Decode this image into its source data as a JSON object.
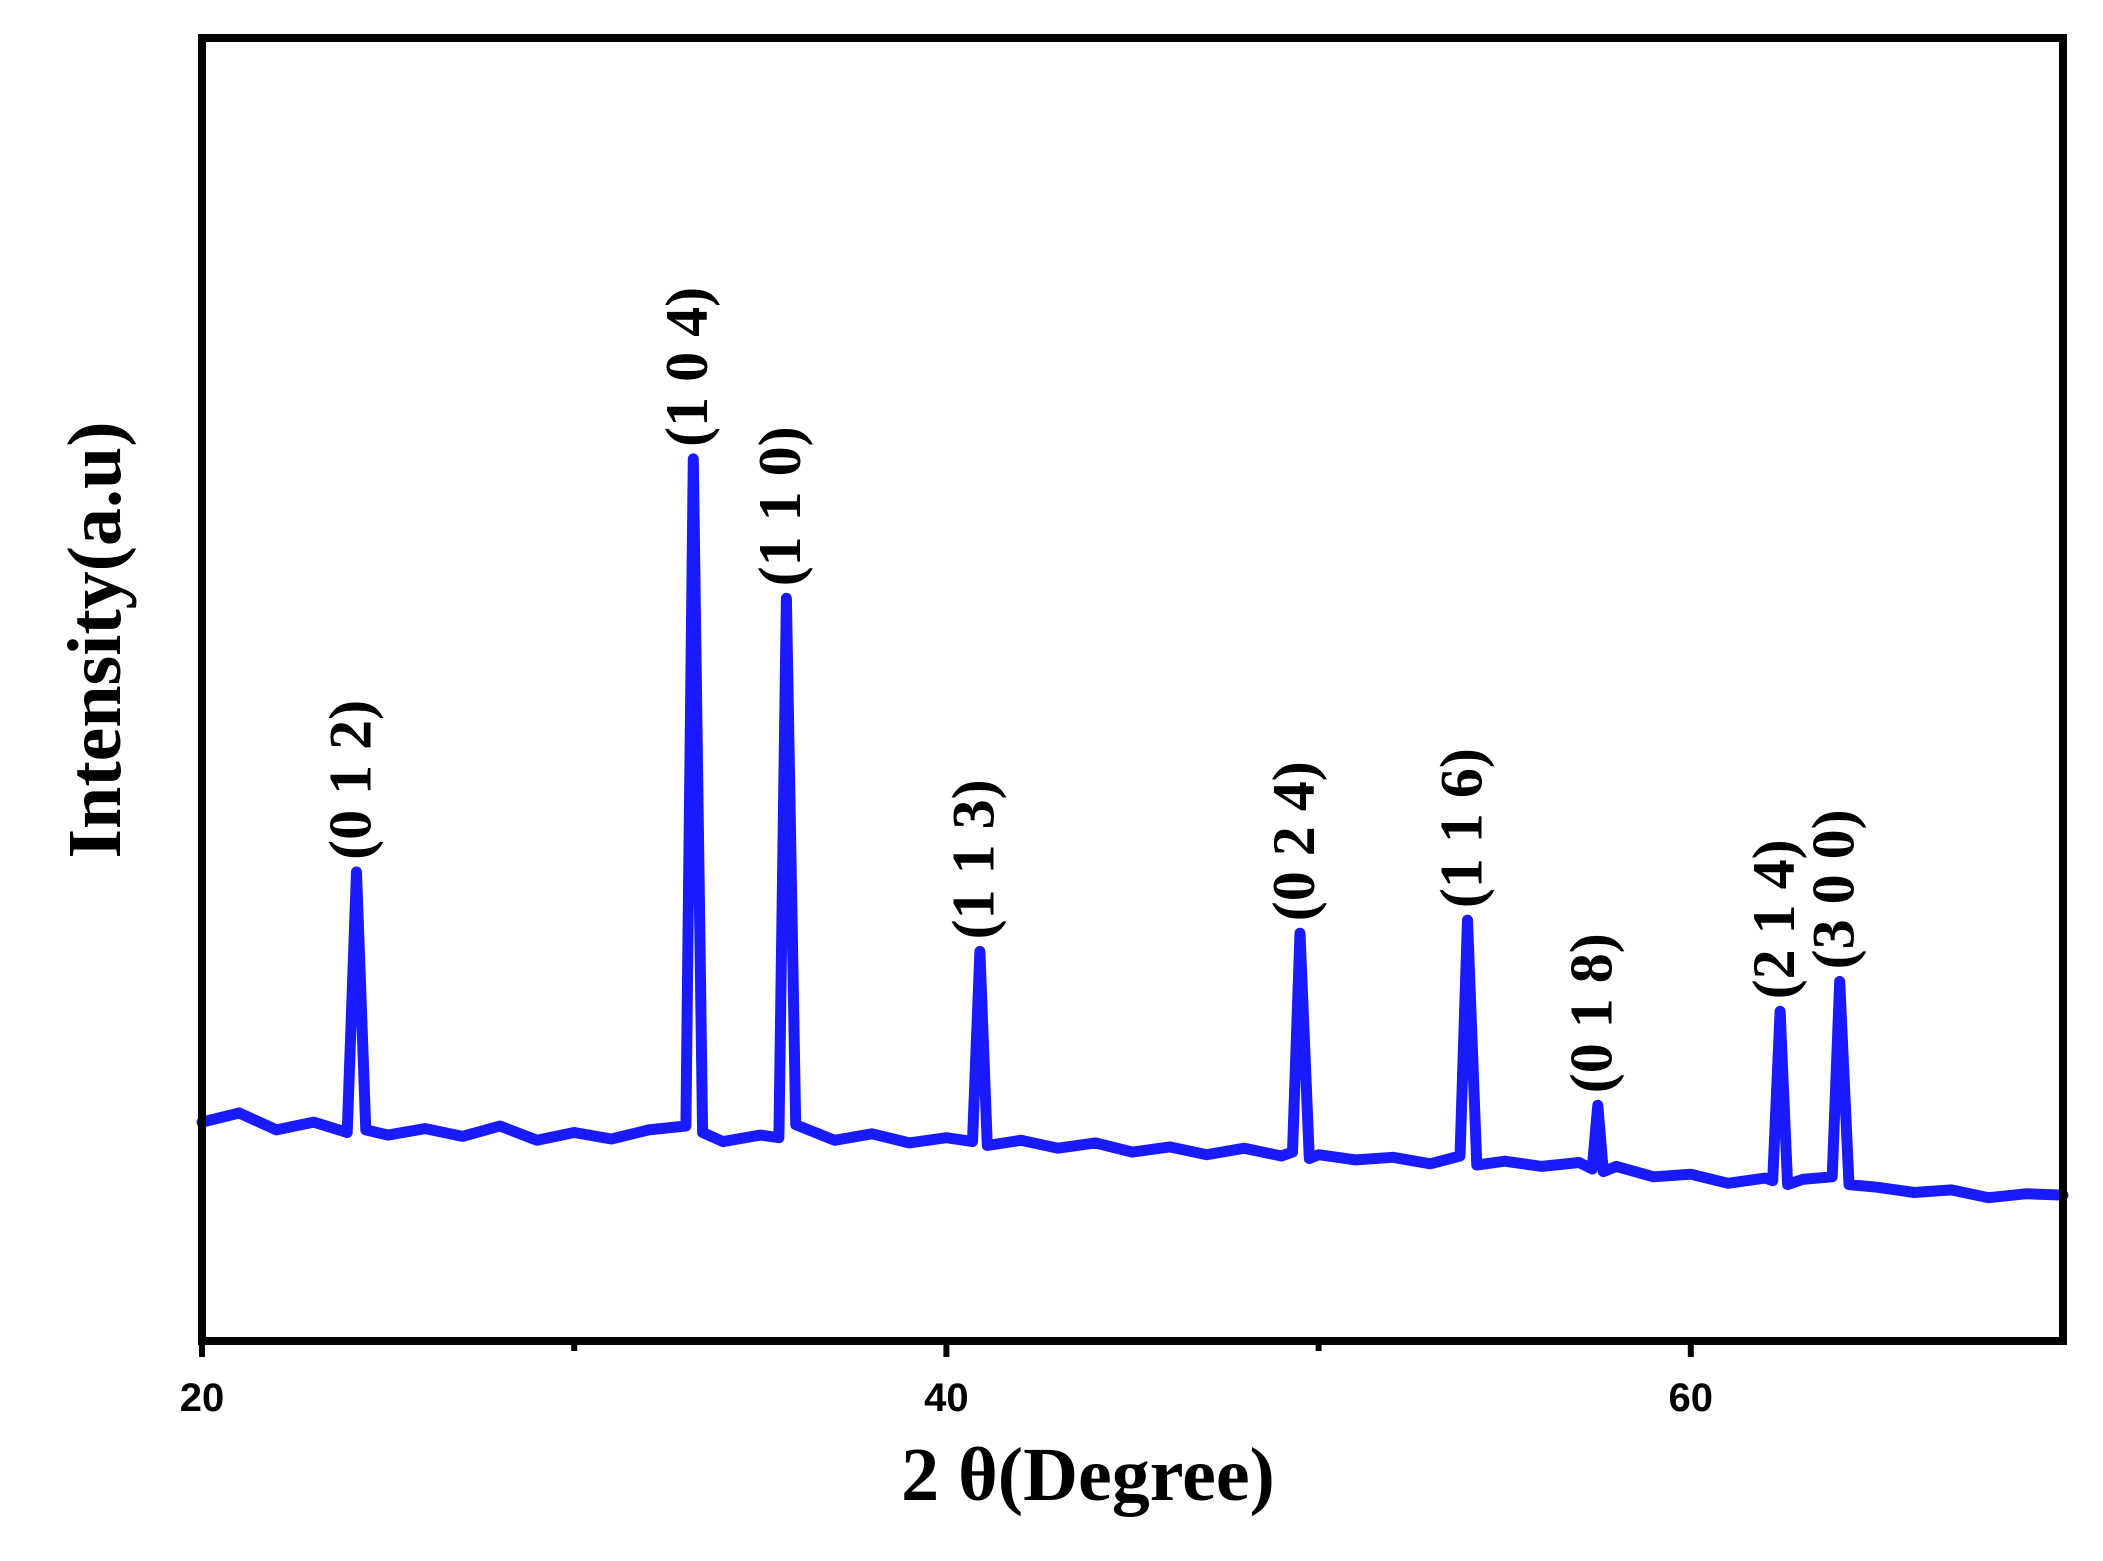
{
  "chart_data": {
    "type": "line",
    "x_label": "2 θ(Degree)",
    "y_label": "Intensity(a.u)",
    "color": "#1a1aff",
    "xlim": [
      20,
      70
    ],
    "ylim": [
      0,
      100
    ],
    "xticks": [
      20,
      40,
      60
    ],
    "xminorticks": [
      30,
      50
    ],
    "x": [
      20,
      21,
      22,
      23,
      23.9,
      24.15,
      24.4,
      25,
      26,
      27,
      28,
      29,
      30,
      31,
      32,
      33.0,
      33.2,
      33.45,
      34,
      35,
      35.5,
      35.7,
      35.95,
      37,
      38,
      39,
      40,
      40.7,
      40.9,
      41.1,
      42,
      43,
      44,
      45,
      46,
      47,
      48,
      49,
      49.3,
      49.5,
      49.75,
      50,
      51,
      52,
      53,
      53.8,
      54.0,
      54.25,
      55,
      56,
      57,
      57.35,
      57.5,
      57.65,
      58,
      59,
      60,
      61,
      62,
      62.2,
      62.4,
      62.6,
      63.0,
      63.8,
      64.0,
      64.25,
      65,
      66,
      67,
      68,
      69,
      70
    ],
    "values": [
      16.8,
      17.5,
      16.2,
      16.8,
      16.0,
      36,
      16.2,
      15.8,
      16.3,
      15.7,
      16.5,
      15.4,
      16.0,
      15.5,
      16.2,
      16.5,
      67.7,
      16.0,
      15.3,
      15.8,
      15.6,
      57,
      16.6,
      15.4,
      15.9,
      15.2,
      15.6,
      15.3,
      29.9,
      15.0,
      15.4,
      14.8,
      15.2,
      14.5,
      14.9,
      14.3,
      14.8,
      14.2,
      14.5,
      31.3,
      14.0,
      14.3,
      13.9,
      14.1,
      13.6,
      14.2,
      32.3,
      13.5,
      13.8,
      13.4,
      13.7,
      13.2,
      18.1,
      13.0,
      13.4,
      12.6,
      12.8,
      12.1,
      12.5,
      12.3,
      25.3,
      12.0,
      12.4,
      12.6,
      27.6,
      12.0,
      11.8,
      11.4,
      11.6,
      11.0,
      11.3,
      11.2
    ],
    "annotations": [
      {
        "text": "(0 1 2)",
        "x": 24.15,
        "y": 36
      },
      {
        "text": "(1 0 4)",
        "x": 33.2,
        "y": 67.7
      },
      {
        "text": "(1 1 0)",
        "x": 35.7,
        "y": 57
      },
      {
        "text": "(1 1 3)",
        "x": 40.9,
        "y": 29.9
      },
      {
        "text": "(0 2 4)",
        "x": 49.5,
        "y": 31.3
      },
      {
        "text": "(1 1 6)",
        "x": 54.0,
        "y": 32.3
      },
      {
        "text": "(0 1 8)",
        "x": 57.5,
        "y": 18.1
      },
      {
        "text": "(2 1 4)",
        "x": 62.4,
        "y": 25.3
      },
      {
        "text": "(3 0 0)",
        "x": 64.0,
        "y": 27.6
      }
    ]
  }
}
